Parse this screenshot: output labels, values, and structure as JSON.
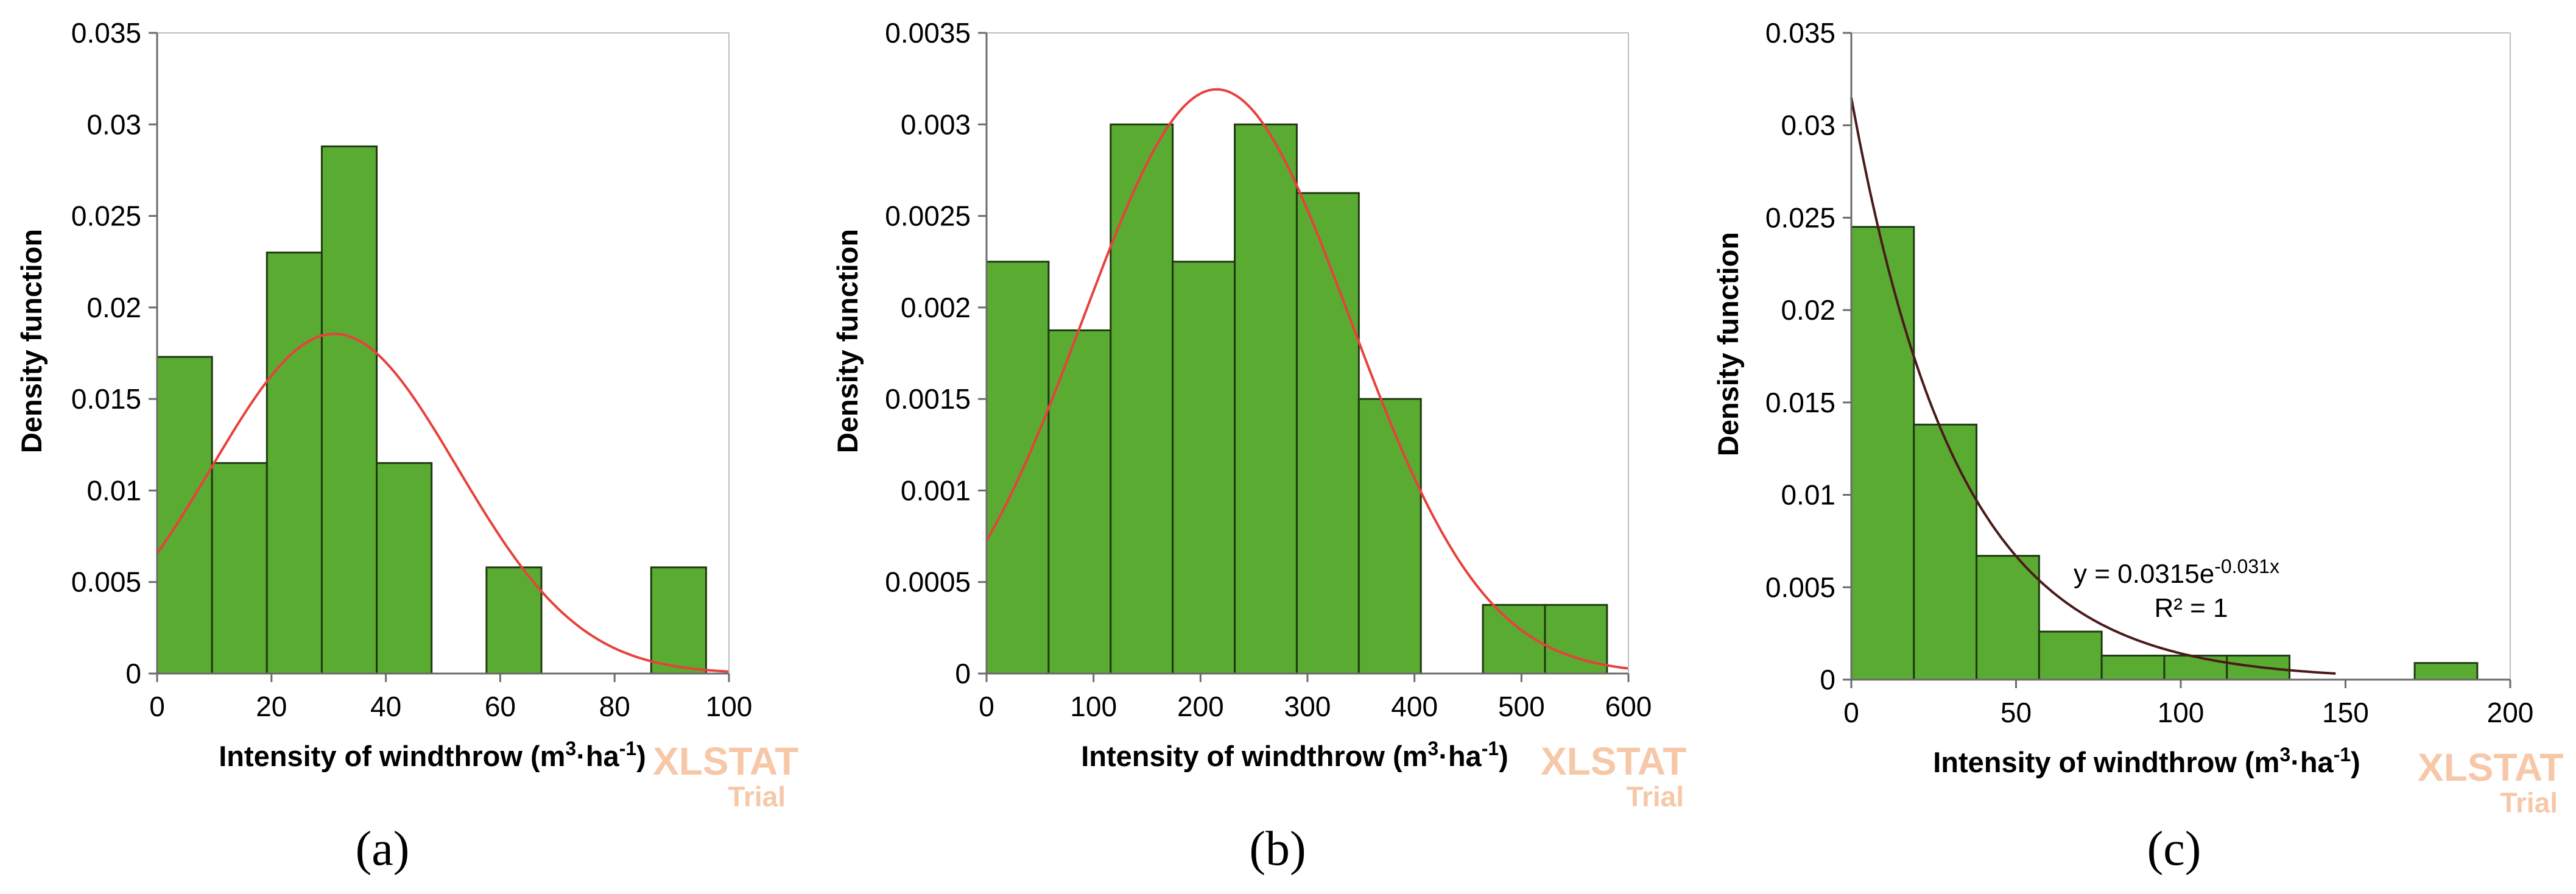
{
  "chart_data": [
    {
      "type": "bar",
      "panel": "(a)",
      "ylabel": "Density function",
      "xlabel_main": "Intensity of windthrow (m",
      "xlabel_sup1": "3",
      "xlabel_mid": "·ha",
      "xlabel_sup2": "-1",
      "xlabel_end": ")",
      "xlim": [
        0,
        100
      ],
      "ylim": [
        0,
        0.035
      ],
      "xticks": [
        "0",
        "20",
        "40",
        "60",
        "80",
        "100"
      ],
      "xtick_values": [
        0,
        20,
        40,
        60,
        80,
        100
      ],
      "yticks": [
        "0",
        "0.005",
        "0.01",
        "0.015",
        "0.02",
        "0.025",
        "0.03",
        "0.035"
      ],
      "ytick_values": [
        0,
        0.005,
        0.01,
        0.015,
        0.02,
        0.025,
        0.03,
        0.035
      ],
      "bins": [
        [
          0,
          9.6
        ],
        [
          9.6,
          19.2
        ],
        [
          19.2,
          28.8
        ],
        [
          28.8,
          38.4
        ],
        [
          38.4,
          48.0
        ],
        [
          48.0,
          57.6
        ],
        [
          57.6,
          67.2
        ],
        [
          67.2,
          76.8
        ],
        [
          76.8,
          86.4
        ],
        [
          86.4,
          96.0
        ]
      ],
      "values": [
        0.0173,
        0.0115,
        0.023,
        0.0288,
        0.0115,
        0,
        0.0058,
        0,
        0,
        0.0058
      ],
      "fit": {
        "kind": "normal",
        "mean": 31,
        "sd": 21.5,
        "color": "#e8413c"
      },
      "watermark": {
        "main": "XLSTAT",
        "sub": "Trial"
      }
    },
    {
      "type": "bar",
      "panel": "(b)",
      "ylabel": "Density function",
      "xlabel_main": "Intensity of windthrow (m",
      "xlabel_sup1": "3",
      "xlabel_mid": "·ha",
      "xlabel_sup2": "-1",
      "xlabel_end": ")",
      "xlim": [
        0,
        600
      ],
      "ylim": [
        0,
        0.0035
      ],
      "xticks": [
        "0",
        "100",
        "200",
        "300",
        "400",
        "500",
        "600"
      ],
      "xtick_values": [
        0,
        100,
        200,
        300,
        400,
        500,
        600
      ],
      "yticks": [
        "0",
        "0.0005",
        "0.001",
        "0.0015",
        "0.002",
        "0.0025",
        "0.003",
        "0.0035"
      ],
      "ytick_values": [
        0,
        0.0005,
        0.001,
        0.0015,
        0.002,
        0.0025,
        0.003,
        0.0035
      ],
      "bins": [
        [
          0,
          58
        ],
        [
          58,
          116
        ],
        [
          116,
          174
        ],
        [
          174,
          232
        ],
        [
          232,
          290
        ],
        [
          290,
          348
        ],
        [
          348,
          406
        ],
        [
          406,
          464
        ],
        [
          464,
          522
        ],
        [
          522,
          580
        ]
      ],
      "values": [
        0.00225,
        0.001875,
        0.003,
        0.00225,
        0.003,
        0.002625,
        0.0015,
        0,
        0.000375,
        0.000375
      ],
      "fit": {
        "kind": "normal",
        "mean": 215,
        "sd": 125,
        "color": "#e8413c"
      },
      "watermark": {
        "main": "XLSTAT",
        "sub": "Trial"
      }
    },
    {
      "type": "bar",
      "panel": "(c)",
      "ylabel": "Density function",
      "xlabel_main": "Intensity of windthrow (m",
      "xlabel_sup1": "3",
      "xlabel_mid": "·ha",
      "xlabel_sup2": "-1",
      "xlabel_end": ")",
      "xlim": [
        0,
        200
      ],
      "ylim": [
        0,
        0.035
      ],
      "xticks": [
        "0",
        "50",
        "100",
        "150",
        "200"
      ],
      "xtick_values": [
        0,
        50,
        100,
        150,
        200
      ],
      "yticks": [
        "0",
        "0.005",
        "0.01",
        "0.015",
        "0.02",
        "0.025",
        "0.03",
        "0.035"
      ],
      "ytick_values": [
        0,
        0.005,
        0.01,
        0.015,
        0.02,
        0.025,
        0.03,
        0.035
      ],
      "bins": [
        [
          0,
          19
        ],
        [
          19,
          38
        ],
        [
          38,
          57
        ],
        [
          57,
          76
        ],
        [
          76,
          95
        ],
        [
          95,
          114
        ],
        [
          114,
          133
        ],
        [
          133,
          152
        ],
        [
          152,
          171
        ],
        [
          171,
          190
        ]
      ],
      "values": [
        0.0245,
        0.0138,
        0.0067,
        0.0026,
        0.0013,
        0.0013,
        0.0013,
        0,
        0,
        0.0009
      ],
      "fit": {
        "kind": "exponential",
        "a": 0.0315,
        "b": 0.031,
        "xmax": 147,
        "color": "#4a1a1a"
      },
      "equation": {
        "main": "y = 0.0315e",
        "exp": "-0.031x",
        "r2": "R² = 1"
      },
      "watermark": {
        "main": "XLSTAT",
        "sub": "Trial"
      }
    }
  ],
  "colors": {
    "bar_fill": "#5aab32",
    "bar_stroke": "#1e3a10",
    "axis": "#6b6b6b",
    "frame": "#9a9a9a"
  }
}
